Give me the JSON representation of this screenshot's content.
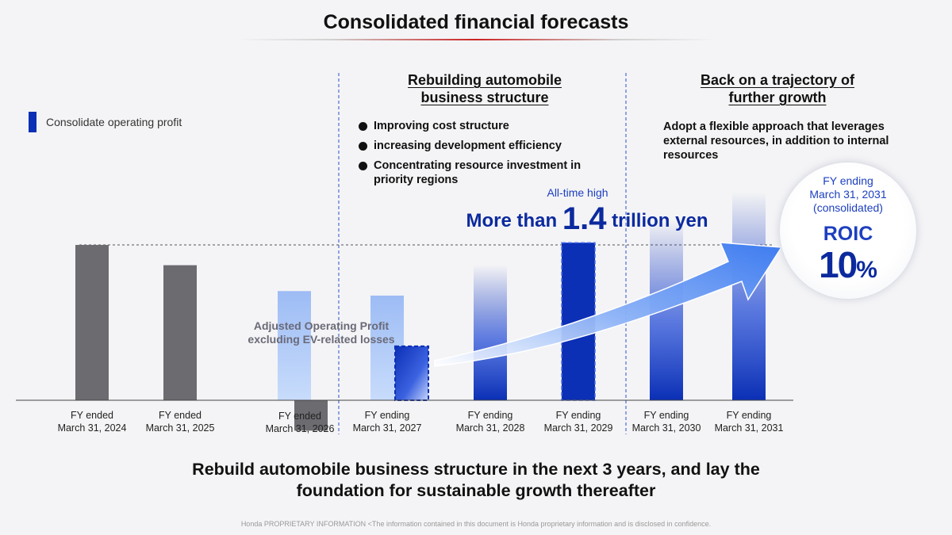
{
  "page": {
    "title": "Consolidated financial forecasts",
    "legend": "Consolidate operating profit",
    "section_rebuild": {
      "line1": "Rebuilding automobile",
      "line2": "business structure"
    },
    "section_growth": {
      "line1": "Back on a trajectory of",
      "line2": "further growth"
    },
    "bullets": [
      "Improving cost structure",
      "increasing development efficiency",
      "Concentrating resource investment in priority regions"
    ],
    "growth_text": "Adopt a flexible approach that leverages external resources, in addition to internal resources",
    "all_time_high": "All-time high",
    "headline": {
      "prefix": "More than",
      "value": "1.4",
      "suffix": "trillion yen"
    },
    "adjusted_label": "Adjusted Operating Profit excluding EV-related losses",
    "roic": {
      "sub1": "FY ending",
      "sub2": "March 31, 2031",
      "sub3": "(consolidated)",
      "label": "ROIC",
      "value": "10",
      "unit": "%"
    },
    "conclusion": {
      "line1": "Rebuild automobile business structure in the next 3 years, and lay the",
      "line2": "foundation for sustainable growth thereafter"
    },
    "footer": "Honda PROPRIETARY INFORMATION <The information contained in this document is Honda proprietary information and is disclosed in confidence."
  },
  "colors": {
    "actual_bar": "#6b6b70",
    "forecast_light": "#a9c6f7",
    "forecast_blue": "#0b2fb5",
    "accent_red": "#cc2222"
  },
  "chart_data": {
    "type": "bar",
    "categories": [
      "FY ended March 31, 2024",
      "FY ended March 31, 2025",
      "FY ended March 31, 2026",
      "FY ending March 31, 2027",
      "FY ending March 31, 2028",
      "FY ending March 31, 2029",
      "FY ending March 31, 2030",
      "FY ending March 31, 2031"
    ],
    "category_lines": [
      [
        "FY ended",
        "March 31, 2024"
      ],
      [
        "FY ended",
        "March 31, 2025"
      ],
      [
        "FY ended",
        "March 31, 2026"
      ],
      [
        "FY ending",
        "March 31, 2027"
      ],
      [
        "FY ending",
        "March 31, 2028"
      ],
      [
        "FY ending",
        "March 31, 2029"
      ],
      [
        "FY ending",
        "March 31, 2030"
      ],
      [
        "FY ending",
        "March 31, 2031"
      ]
    ],
    "series": [
      {
        "name": "Consolidate operating profit",
        "values": [
          1.38,
          1.2,
          -0.27,
          0.48,
          1.2,
          1.4,
          1.6,
          1.85
        ]
      },
      {
        "name": "Adjusted Operating Profit excluding EV-related losses",
        "values": [
          null,
          null,
          0.97,
          0.93,
          null,
          null,
          null,
          null
        ]
      }
    ],
    "reference_line": 1.38,
    "annotations": [
      "All-time high",
      "More than 1.4 trillion yen",
      "ROIC 10%"
    ],
    "grid": false
  }
}
